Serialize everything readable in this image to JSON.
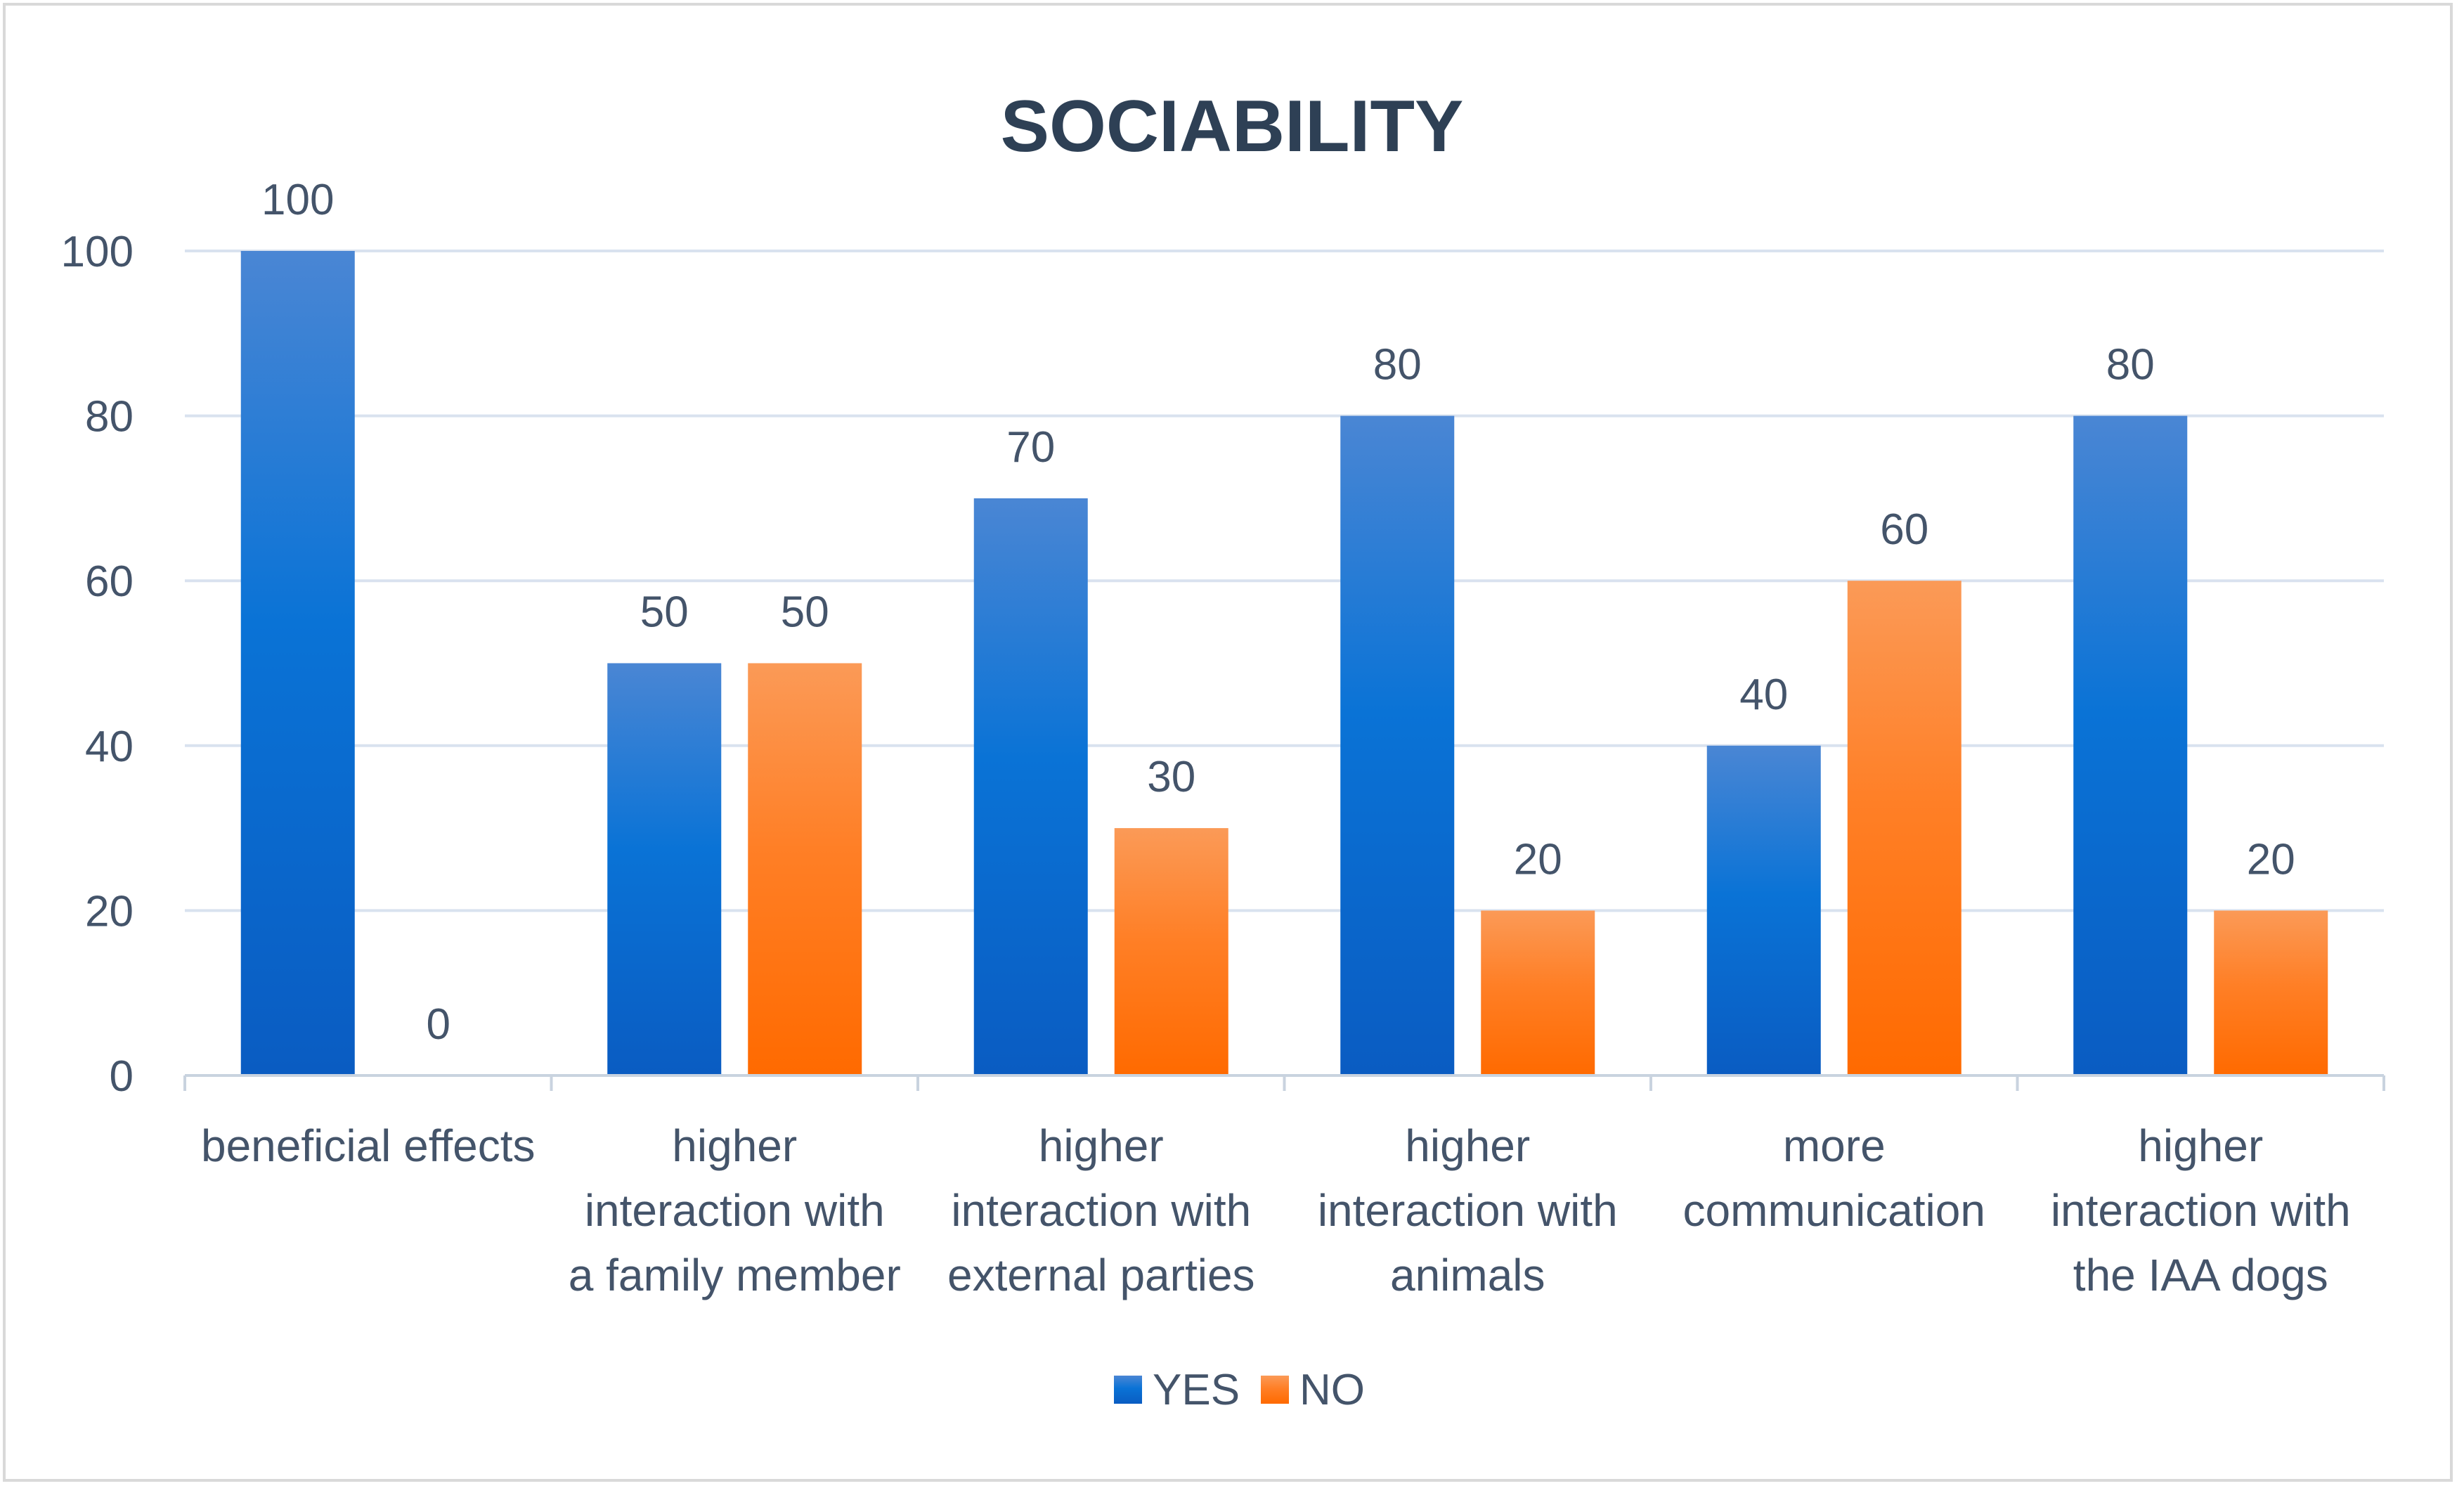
{
  "chart_data": {
    "type": "bar",
    "title": "SOCIABILITY",
    "categories": [
      [
        "beneficial effects"
      ],
      [
        "higher",
        "interaction with",
        "a family member"
      ],
      [
        "higher",
        "interaction with",
        "external parties"
      ],
      [
        "higher",
        "interaction with",
        "animals"
      ],
      [
        "more",
        "communication"
      ],
      [
        "higher",
        "interaction with",
        "the IAA dogs"
      ]
    ],
    "series": [
      {
        "name": "YES",
        "values": [
          100,
          50,
          70,
          80,
          40,
          80
        ]
      },
      {
        "name": "NO",
        "values": [
          0,
          50,
          30,
          20,
          60,
          20
        ]
      }
    ],
    "ylim": [
      0,
      100
    ],
    "yticks": [
      0,
      20,
      40,
      60,
      80,
      100
    ],
    "grid": true,
    "legend": "bottom-center",
    "xlabel": "",
    "ylabel": ""
  },
  "colors": {
    "yes_top": "#4a86d4",
    "yes_bottom": "#0a5cc2",
    "no_top": "#fb9a57",
    "no_bottom": "#ff6a00",
    "grid": "#d9e2ef",
    "axis": "#c9d3df"
  }
}
